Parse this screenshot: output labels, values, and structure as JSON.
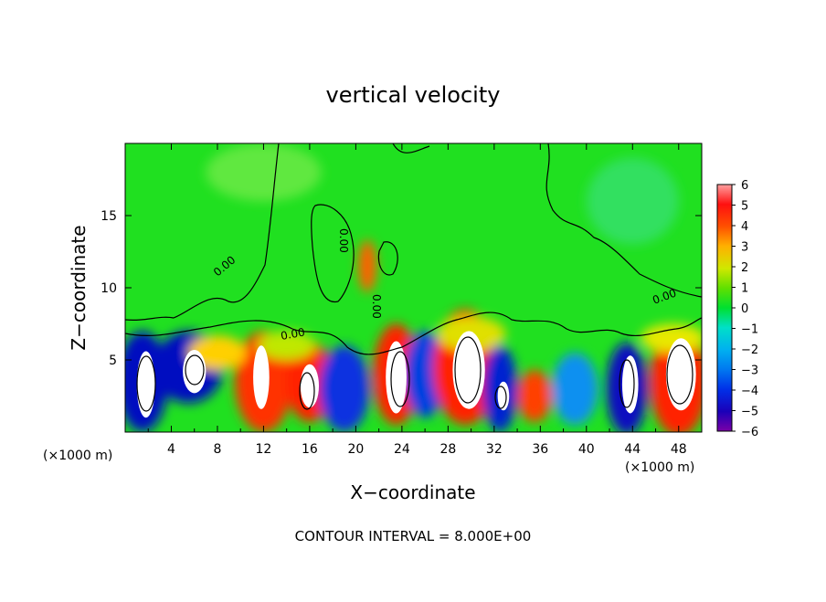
{
  "chart_data": {
    "type": "heatmap",
    "title": "vertical velocity",
    "xlabel": "X−coordinate",
    "ylabel": "Z−coordinate",
    "x_unit": "(×1000 m)",
    "z_unit": "(×1000 m)",
    "xlim": [
      0,
      50
    ],
    "ylim": [
      0,
      20
    ],
    "x_ticks": [
      "4",
      "8",
      "12",
      "16",
      "20",
      "24",
      "28",
      "32",
      "36",
      "40",
      "44",
      "48"
    ],
    "y_ticks": [
      "5",
      "10",
      "15"
    ],
    "colorbar": {
      "ticks": [
        "6",
        "5",
        "4",
        "3",
        "2",
        "1",
        "0",
        "−1",
        "−2",
        "−3",
        "−4",
        "−5",
        "−6"
      ],
      "range": [
        -6,
        6
      ],
      "colors": [
        "#7a00a8",
        "#1a00b8",
        "#0030e8",
        "#0078f0",
        "#00b0f0",
        "#00e0d0",
        "#00e040",
        "#40e000",
        "#a0e800",
        "#e8e800",
        "#ffb000",
        "#ff7000",
        "#ff2000",
        "#ff7070",
        "#ffb0b0"
      ]
    },
    "zero_contour_labels": [
      "0.00",
      "0.00",
      "0.00",
      "0.00",
      "0.00"
    ],
    "footer": "CONTOUR INTERVAL = 8.000E+00"
  }
}
